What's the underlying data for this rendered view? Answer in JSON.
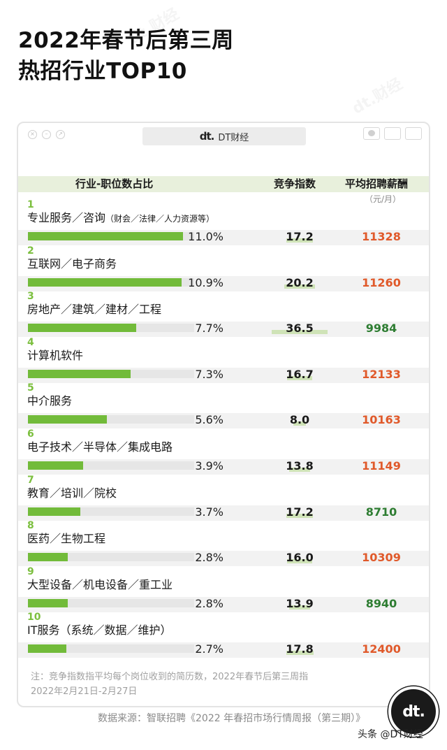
{
  "title": {
    "line1": "2022年春节后第三周",
    "line2": "热招行业TOP10"
  },
  "window": {
    "address": "DT财经",
    "logo": "dt."
  },
  "columns": {
    "industry": "行业-职位数占比",
    "competition": "竞争指数",
    "salary": "平均招聘薪酬",
    "salary_unit": "（元/月）"
  },
  "colors": {
    "bar": "#72bb3a",
    "rank": "#7cbf3f",
    "salary_high": "#e0592a",
    "salary_low": "#2e7d32",
    "competition_bar": "#cfe3b7"
  },
  "chart_data": {
    "type": "table",
    "rows": [
      {
        "rank": "1",
        "industry": "专业服务／咨询",
        "note": "（财会／法律／人力资源等）",
        "share_pct": 11.0,
        "share_label": "11.0%",
        "competition": 17.2,
        "competition_label": "17.2",
        "salary": 11328,
        "salary_label": "11328",
        "salary_color": "#e0592a"
      },
      {
        "rank": "2",
        "industry": "互联网／电子商务",
        "note": "",
        "share_pct": 10.9,
        "share_label": "10.9%",
        "competition": 20.2,
        "competition_label": "20.2",
        "salary": 11260,
        "salary_label": "11260",
        "salary_color": "#e0592a"
      },
      {
        "rank": "3",
        "industry": "房地产／建筑／建材／工程",
        "note": "",
        "share_pct": 7.7,
        "share_label": "7.7%",
        "competition": 36.5,
        "competition_label": "36.5",
        "salary": 9984,
        "salary_label": "9984",
        "salary_color": "#2e7d32"
      },
      {
        "rank": "4",
        "industry": "计算机软件",
        "note": "",
        "share_pct": 7.3,
        "share_label": "7.3%",
        "competition": 16.7,
        "competition_label": "16.7",
        "salary": 12133,
        "salary_label": "12133",
        "salary_color": "#e0592a"
      },
      {
        "rank": "5",
        "industry": "中介服务",
        "note": "",
        "share_pct": 5.6,
        "share_label": "5.6%",
        "competition": 8.0,
        "competition_label": "8.0",
        "salary": 10163,
        "salary_label": "10163",
        "salary_color": "#e0592a"
      },
      {
        "rank": "6",
        "industry": "电子技术／半导体／集成电路",
        "note": "",
        "share_pct": 3.9,
        "share_label": "3.9%",
        "competition": 13.8,
        "competition_label": "13.8",
        "salary": 11149,
        "salary_label": "11149",
        "salary_color": "#e0592a"
      },
      {
        "rank": "7",
        "industry": "教育／培训／院校",
        "note": "",
        "share_pct": 3.7,
        "share_label": "3.7%",
        "competition": 17.2,
        "competition_label": "17.2",
        "salary": 8710,
        "salary_label": "8710",
        "salary_color": "#2e7d32"
      },
      {
        "rank": "8",
        "industry": "医药／生物工程",
        "note": "",
        "share_pct": 2.8,
        "share_label": "2.8%",
        "competition": 16.0,
        "competition_label": "16.0",
        "salary": 10309,
        "salary_label": "10309",
        "salary_color": "#e0592a"
      },
      {
        "rank": "9",
        "industry": "大型设备／机电设备／重工业",
        "note": "",
        "share_pct": 2.8,
        "share_label": "2.8%",
        "competition": 13.9,
        "competition_label": "13.9",
        "salary": 8940,
        "salary_label": "8940",
        "salary_color": "#2e7d32"
      },
      {
        "rank": "10",
        "industry": "IT服务（系统／数据／维护）",
        "note": "",
        "share_pct": 2.7,
        "share_label": "2.7%",
        "competition": 17.8,
        "competition_label": "17.8",
        "salary": 12400,
        "salary_label": "12400",
        "salary_color": "#e0592a"
      }
    ],
    "share_max": 11.8,
    "competition_max": 36.5
  },
  "footer": {
    "note_line1": "注：竞争指数指平均每个岗位收到的简历数，2022年春节后第三周指",
    "note_line2": "2022年2月21日-2月27日",
    "source": "数据来源：智联招聘《2022 年春招市场行情周报（第三期）》",
    "badge": "dt.",
    "handle": "头条 @DT财经"
  },
  "watermark": "dt.财经"
}
